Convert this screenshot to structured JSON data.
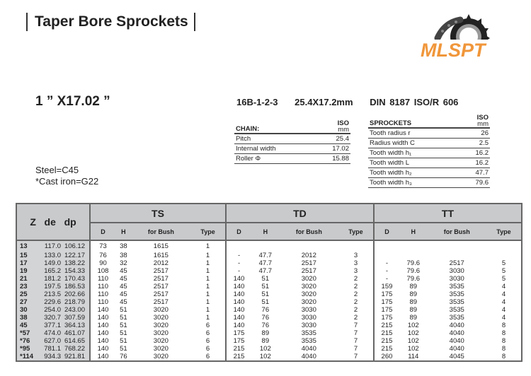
{
  "title": "Taper Bore Sprockets",
  "logo": {
    "text": "MLSPT",
    "color": "#f0963a"
  },
  "size": "1 ” X17.02 ”",
  "spec": [
    "16B-1-2-3",
    "25.4X17.2mm",
    "DIN 8187  ISO/R 606"
  ],
  "chain": {
    "title": "CHAIN:",
    "unit_top": "ISO",
    "unit_bottom": "mm",
    "rows": [
      [
        "Pitch",
        "25.4"
      ],
      [
        "Internal width",
        "17.02"
      ],
      [
        "Roller Φ",
        "15.88"
      ]
    ]
  },
  "sprockets": {
    "title": "SPROCKETS",
    "unit_top": "ISO",
    "unit_bottom": "mm",
    "rows": [
      [
        "Tooth radius  r",
        "26"
      ],
      [
        "Radius width C",
        "2.5"
      ],
      [
        "Tooth width h₁",
        "16.2"
      ],
      [
        "Tooth width L",
        "16.2"
      ],
      [
        "Tooth width h₂",
        "47.7"
      ],
      [
        "Tooth width h₃",
        "79.6"
      ]
    ]
  },
  "materials": [
    "Steel=C45",
    "*Cast iron=G22"
  ],
  "table": {
    "left_headers": [
      "Z",
      "de",
      "dp"
    ],
    "groups": [
      "TS",
      "TD",
      "TT"
    ],
    "sub_headers": [
      "D",
      "H",
      "for Bush",
      "Type"
    ],
    "rows": [
      [
        "13",
        "117.0",
        "106.12",
        "73",
        "38",
        "1615",
        "1",
        "",
        "",
        "",
        "",
        "",
        "",
        "",
        ""
      ],
      [
        "15",
        "133.0",
        "122.17",
        "76",
        "38",
        "1615",
        "1",
        "-",
        "47.7",
        "2012",
        "3",
        "",
        "",
        "",
        ""
      ],
      [
        "17",
        "149.0",
        "138.22",
        "90",
        "32",
        "2012",
        "1",
        "-",
        "47.7",
        "2517",
        "3",
        "-",
        "79.6",
        "2517",
        "5"
      ],
      [
        "19",
        "165.2",
        "154.33",
        "108",
        "45",
        "2517",
        "1",
        "-",
        "47.7",
        "2517",
        "3",
        "-",
        "79.6",
        "3030",
        "5"
      ],
      [
        "21",
        "181.2",
        "170.43",
        "110",
        "45",
        "2517",
        "1",
        "140",
        "51",
        "3020",
        "2",
        "-",
        "79.6",
        "3030",
        "5"
      ],
      [
        "23",
        "197.5",
        "186.53",
        "110",
        "45",
        "2517",
        "1",
        "140",
        "51",
        "3020",
        "2",
        "159",
        "89",
        "3535",
        "4"
      ],
      [
        "25",
        "213.5",
        "202.66",
        "110",
        "45",
        "2517",
        "1",
        "140",
        "51",
        "3020",
        "2",
        "175",
        "89",
        "3535",
        "4"
      ],
      [
        "27",
        "229.6",
        "218.79",
        "110",
        "45",
        "2517",
        "1",
        "140",
        "51",
        "3020",
        "2",
        "175",
        "89",
        "3535",
        "4"
      ],
      [
        "30",
        "254.0",
        "243.00",
        "140",
        "51",
        "3020",
        "1",
        "140",
        "76",
        "3030",
        "2",
        "175",
        "89",
        "3535",
        "4"
      ],
      [
        "38",
        "320.7",
        "307.59",
        "140",
        "51",
        "3020",
        "1",
        "140",
        "76",
        "3030",
        "2",
        "175",
        "89",
        "3535",
        "4"
      ],
      [
        "45",
        "377.1",
        "364.13",
        "140",
        "51",
        "3020",
        "6",
        "140",
        "76",
        "3030",
        "7",
        "215",
        "102",
        "4040",
        "8"
      ],
      [
        "*57",
        "474.0",
        "461.07",
        "140",
        "51",
        "3020",
        "6",
        "175",
        "89",
        "3535",
        "7",
        "215",
        "102",
        "4040",
        "8"
      ],
      [
        "*76",
        "627.0",
        "614.65",
        "140",
        "51",
        "3020",
        "6",
        "175",
        "89",
        "3535",
        "7",
        "215",
        "102",
        "4040",
        "8"
      ],
      [
        "*95",
        "781.1",
        "768.22",
        "140",
        "51",
        "3020",
        "6",
        "215",
        "102",
        "4040",
        "7",
        "215",
        "102",
        "4040",
        "8"
      ],
      [
        "*114",
        "934.3",
        "921.81",
        "140",
        "76",
        "3020",
        "6",
        "215",
        "102",
        "4040",
        "7",
        "260",
        "114",
        "4045",
        "8"
      ]
    ]
  }
}
